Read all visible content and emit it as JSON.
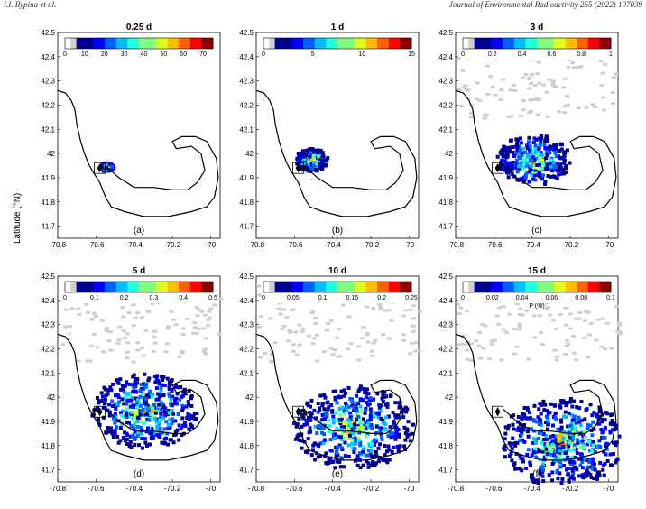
{
  "header": {
    "authors": "I.I. Rypina et al.",
    "journal": "Journal of Environmental Radioactivity 255 (2022) 107039"
  },
  "colors": {
    "colormap": [
      "#ffffff",
      "#d0d0d0",
      "#00008f",
      "#0000ff",
      "#0060ff",
      "#00bfff",
      "#20ffdf",
      "#80ff80",
      "#dfff20",
      "#ffbf00",
      "#ff6000",
      "#ff0000",
      "#8f0000"
    ],
    "coastline": "#000000",
    "gray_zero": "#cfcfcf"
  },
  "chart_data": [
    {
      "type": "heatmap",
      "title": "0.25 d",
      "panel": "(a)",
      "cbar_ticks": [
        "0",
        "10",
        "20",
        "30",
        "40",
        "50",
        "60",
        "70"
      ],
      "cbar_range": [
        0,
        75
      ],
      "xlim": [
        -70.8,
        -69.95
      ],
      "ylim": [
        41.65,
        42.5
      ],
      "xticks": [
        "-70.8",
        "-70.6",
        "-70.4",
        "-70.2",
        "-70"
      ],
      "yticks": [
        "42.5",
        "42.4",
        "42.3",
        "42.2",
        "42.1",
        "42",
        "41.9",
        "41.8",
        "41.7"
      ],
      "spread": 0.1,
      "cx": -70.55,
      "cy": 41.95
    },
    {
      "type": "heatmap",
      "title": "1 d",
      "panel": "(b)",
      "cbar_ticks": [
        "0",
        "5",
        "10",
        "15"
      ],
      "cbar_range": [
        0,
        15
      ],
      "xlim": [
        -70.8,
        -69.95
      ],
      "ylim": [
        41.65,
        42.5
      ],
      "xticks": [
        "-70.8",
        "-70.6",
        "-70.4",
        "-70.2",
        "-70"
      ],
      "yticks": [
        "42.5",
        "42.4",
        "42.3",
        "42.2",
        "42.1",
        "42",
        "41.9",
        "41.8",
        "41.7"
      ],
      "spread": 0.25,
      "cx": -70.52,
      "cy": 41.98
    },
    {
      "type": "heatmap",
      "title": "3 d",
      "panel": "(c)",
      "cbar_ticks": [
        "0",
        "0.2",
        "0.4",
        "0.6",
        "0.8",
        "1"
      ],
      "cbar_range": [
        0,
        1
      ],
      "xlim": [
        -70.8,
        -69.95
      ],
      "ylim": [
        41.65,
        42.5
      ],
      "xticks": [
        "-70.8",
        "-70.6",
        "-70.4",
        "-70.2",
        "-70"
      ],
      "yticks": [
        "42.5",
        "42.4",
        "42.3",
        "42.2",
        "42.1",
        "42",
        "41.9",
        "41.8",
        "41.7"
      ],
      "spread": 0.55,
      "cx": -70.4,
      "cy": 41.98
    },
    {
      "type": "heatmap",
      "title": "5 d",
      "panel": "(d)",
      "cbar_ticks": [
        "0",
        "0.1",
        "0.2",
        "0.3",
        "0.4",
        "0.5"
      ],
      "cbar_range": [
        0,
        0.5
      ],
      "xlim": [
        -70.8,
        -69.95
      ],
      "ylim": [
        41.65,
        42.5
      ],
      "xticks": [
        "-70.8",
        "-70.6",
        "-70.4",
        "-70.2",
        "-70"
      ],
      "yticks": [
        "42.5",
        "42.4",
        "42.3",
        "42.2",
        "42.1",
        "42",
        "41.9",
        "41.8",
        "41.7"
      ],
      "spread": 0.8,
      "cx": -70.35,
      "cy": 41.95
    },
    {
      "type": "heatmap",
      "title": "10 d",
      "panel": "(e)",
      "cbar_ticks": [
        "0",
        "0.05",
        "0.1",
        "0.15",
        "0.2",
        "0.25"
      ],
      "cbar_range": [
        0,
        0.25
      ],
      "xlim": [
        -70.8,
        -69.95
      ],
      "ylim": [
        41.65,
        42.5
      ],
      "xticks": [
        "-70.8",
        "-70.6",
        "-70.4",
        "-70.2",
        "-70"
      ],
      "yticks": [
        "42.5",
        "42.4",
        "42.3",
        "42.2",
        "42.1",
        "42",
        "41.9",
        "41.8",
        "41.7"
      ],
      "spread": 0.9,
      "cx": -70.3,
      "cy": 41.88
    },
    {
      "type": "heatmap",
      "title": "15 d",
      "panel": "(f)",
      "cbar_ticks": [
        "0",
        "0.02",
        "0.04",
        "0.06",
        "0.08",
        "0.1"
      ],
      "cbar_range": [
        0,
        0.1
      ],
      "cbar_label": "P (%)",
      "xlim": [
        -70.8,
        -69.95
      ],
      "ylim": [
        41.65,
        42.5
      ],
      "xticks": [
        "-70.8",
        "-70.6",
        "-70.4",
        "-70.2",
        "-70"
      ],
      "yticks": [
        "42.5",
        "42.4",
        "42.3",
        "42.2",
        "42.1",
        "42",
        "41.9",
        "41.8",
        "41.7"
      ],
      "spread": 0.95,
      "cx": -70.25,
      "cy": 41.82
    }
  ],
  "axis": {
    "ylabel": "Latitude (°N)"
  }
}
